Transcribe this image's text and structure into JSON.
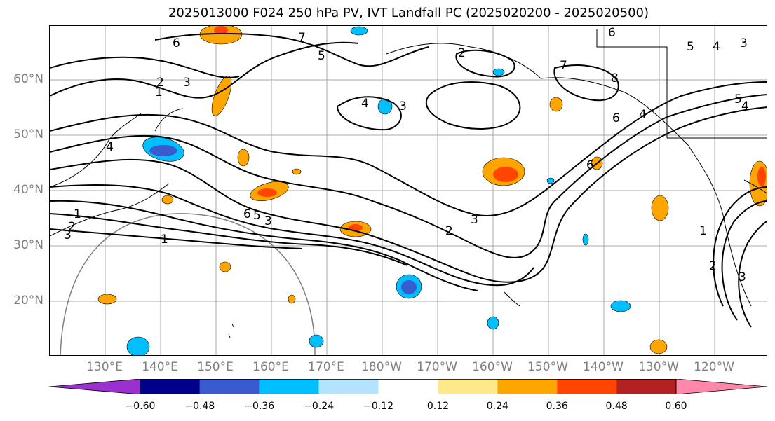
{
  "title": "2025013000 F024 250 hPa PV, IVT Landfall PC (2025020200 - 2025020500)",
  "lat_axis": [
    "60°N",
    "50°N",
    "40°N",
    "30°N",
    "20°N"
  ],
  "lon_axis": [
    "130°E",
    "140°E",
    "150°E",
    "160°E",
    "170°E",
    "180°W",
    "170°W",
    "160°W",
    "150°W",
    "140°W",
    "130°W",
    "120°W"
  ],
  "colorbar": {
    "ticks": [
      "−0.60",
      "−0.48",
      "−0.36",
      "−0.24",
      "−0.12",
      "0.12",
      "0.24",
      "0.36",
      "0.48",
      "0.60"
    ],
    "colors": [
      "#9b30d0",
      "#00008b",
      "#3a5bd0",
      "#00bfff",
      "#b3e3ff",
      "#ffffff",
      "#fde98a",
      "#ffa500",
      "#ff4500",
      "#b22222",
      "#ff88aa"
    ]
  },
  "contour_labels": [
    {
      "text": "6"
    },
    {
      "text": "7"
    },
    {
      "text": "5"
    },
    {
      "text": "2"
    },
    {
      "text": "3"
    },
    {
      "text": "1"
    },
    {
      "text": "4"
    },
    {
      "text": "3"
    },
    {
      "text": "2"
    },
    {
      "text": "7"
    },
    {
      "text": "6"
    },
    {
      "text": "8"
    },
    {
      "text": "5"
    },
    {
      "text": "4"
    },
    {
      "text": "3"
    },
    {
      "text": "6"
    },
    {
      "text": "6"
    },
    {
      "text": "4"
    },
    {
      "text": "5"
    },
    {
      "text": "4"
    },
    {
      "text": "6"
    },
    {
      "text": "5"
    },
    {
      "text": "3"
    },
    {
      "text": "4"
    },
    {
      "text": "3"
    },
    {
      "text": "2"
    },
    {
      "text": "1"
    },
    {
      "text": "1"
    },
    {
      "text": "2"
    },
    {
      "text": "3"
    },
    {
      "text": "1"
    },
    {
      "text": "2"
    },
    {
      "text": "3"
    }
  ]
}
